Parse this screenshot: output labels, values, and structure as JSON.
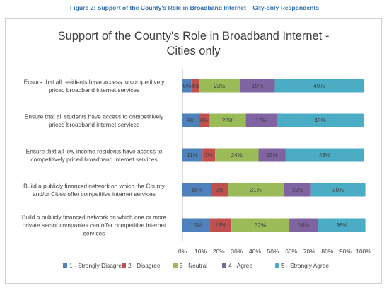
{
  "figure_caption": "Figure 2: Support of the County's Role in Broadband Internet – City-only Respondents",
  "chart_data": {
    "type": "bar",
    "orientation": "horizontal",
    "stacked": "percent",
    "title_line1": "Support of the County's Role in Broadband Internet -",
    "title_line2": "Cities only",
    "categories": [
      [
        "Ensure that all residents have access to competitively",
        "priced broadband internet services"
      ],
      [
        "Ensure that all students have access to competitively",
        "priced broadband internet services"
      ],
      [
        "Ensure that all low-income residents have access to",
        "competitively priced broadband internet services"
      ],
      [
        "Build a publicly financed network on which the County",
        "and/or Cities offer competitive internet services"
      ],
      [
        "Build a publicly financed network on which one or more",
        "private sector companies can offer competitive internet",
        "services"
      ]
    ],
    "series": [
      {
        "name": "1 - Strongly Disagree",
        "color": "#4f81bd",
        "values": [
          5,
          9,
          11,
          16,
          15
        ]
      },
      {
        "name": "2 - Disagree",
        "color": "#c0504d",
        "values": [
          4,
          6,
          7,
          9,
          12
        ]
      },
      {
        "name": "3 - Neutral",
        "color": "#9bbb59",
        "values": [
          23,
          20,
          24,
          31,
          32
        ]
      },
      {
        "name": "4 - Agree",
        "color": "#8064a2",
        "values": [
          19,
          17,
          15,
          15,
          16
        ]
      },
      {
        "name": "5 - Strongly Agree",
        "color": "#4bacc6",
        "values": [
          49,
          48,
          43,
          30,
          26
        ]
      }
    ],
    "x_ticks": [
      "0%",
      "10%",
      "20%",
      "30%",
      "40%",
      "50%",
      "60%",
      "70%",
      "80%",
      "90%",
      "100%"
    ],
    "xlim": [
      0,
      100
    ],
    "grid": false,
    "legend_position": "bottom"
  }
}
